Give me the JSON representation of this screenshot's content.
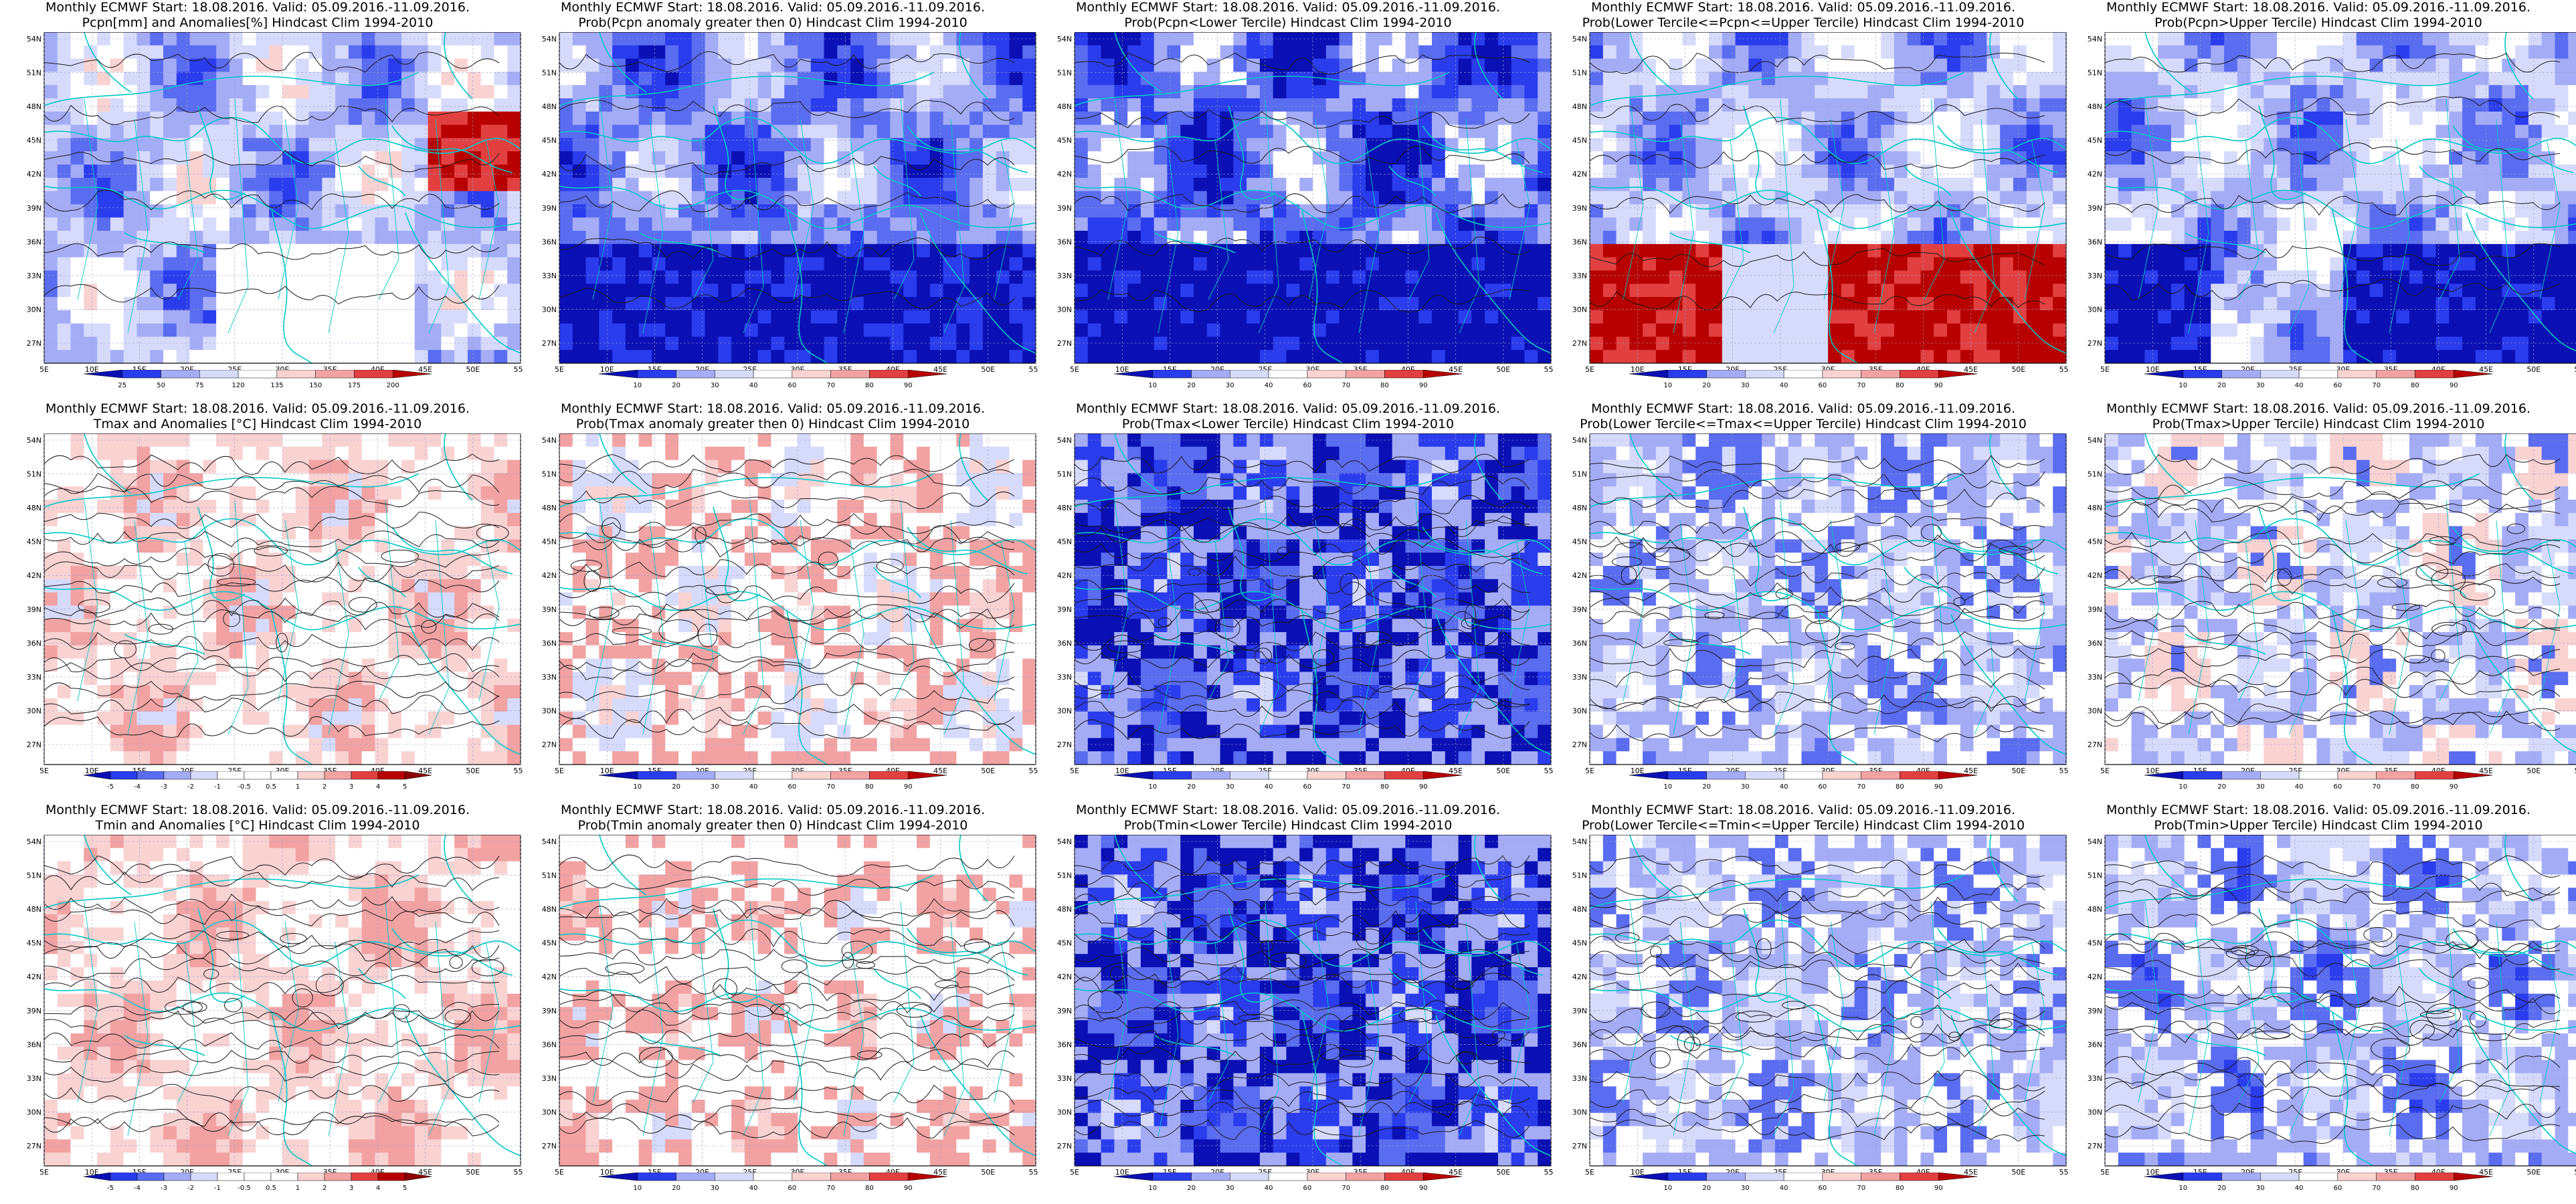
{
  "colors": {
    "deep_blue": "#0a10b4",
    "blue": "#2a3cec",
    "mid_blue": "#5a6cf0",
    "light_blue": "#a4acf6",
    "pale_blue": "#d6dbfb",
    "white": "#ffffff",
    "pale_red": "#f9d2d2",
    "light_red": "#f2a2a2",
    "red": "#e24040",
    "dark_red": "#b80000",
    "coast": "#00c8c8",
    "contour": "#1a1a1a"
  },
  "map_ticks": {
    "lat": [
      "54N",
      "51N",
      "48N",
      "45N",
      "42N",
      "39N",
      "36N",
      "33N",
      "30N",
      "27N"
    ],
    "lon": [
      "5E",
      "10E",
      "15E",
      "20E",
      "25E",
      "30E",
      "35E",
      "40E",
      "45E",
      "50E",
      "55E"
    ]
  },
  "rows": [
    {
      "panels": [
        {
          "title1": "Monthly ECMWF Start: 18.08.2016. Valid: 05.09.2016.-11.09.2016.",
          "title2": "Pcpn[mm] and Anomalies[%] Hindcast Clim 1994-2010",
          "scheme": "precip_anom",
          "colorbar_labels": [
            "25",
            "50",
            "75",
            "120",
            "135",
            "150",
            "175",
            "200"
          ]
        },
        {
          "title1": "Monthly ECMWF Start: 18.08.2016. Valid: 05.09.2016.-11.09.2016.",
          "title2": "Prob(Pcpn anomaly greater then 0) Hindcast Clim 1994-2010",
          "scheme": "prob_blue",
          "colorbar_labels": [
            "10",
            "20",
            "30",
            "40",
            "60",
            "70",
            "80",
            "90"
          ]
        },
        {
          "title1": "Monthly ECMWF Start: 18.08.2016. Valid: 05.09.2016.-11.09.2016.",
          "title2": "Prob(Pcpn<Lower Tercile) Hindcast Clim 1994-2010",
          "scheme": "prob_deep",
          "colorbar_labels": [
            "10",
            "20",
            "30",
            "40",
            "60",
            "70",
            "80",
            "90"
          ]
        },
        {
          "title1": "Monthly ECMWF Start: 18.08.2016. Valid: 05.09.2016.-11.09.2016.",
          "title2": "Prob(Lower Tercile<=Pcpn<=Upper Tercile) Hindcast Clim 1994-2010",
          "scheme": "prob_red_south",
          "colorbar_labels": [
            "10",
            "20",
            "30",
            "40",
            "60",
            "70",
            "80",
            "90"
          ]
        },
        {
          "title1": "Monthly ECMWF Start: 18.08.2016. Valid: 05.09.2016.-11.09.2016.",
          "title2": "Prob(Pcpn>Upper Tercile) Hindcast Clim 1994-2010",
          "scheme": "prob_blue_south",
          "colorbar_labels": [
            "10",
            "20",
            "30",
            "40",
            "60",
            "70",
            "80",
            "90"
          ]
        }
      ]
    },
    {
      "panels": [
        {
          "title1": "Monthly ECMWF Start: 18.08.2016. Valid: 05.09.2016.-11.09.2016.",
          "title2": "Tmax and Anomalies [°C] Hindcast Clim 1994-2010",
          "scheme": "temp_anom",
          "colorbar_labels": [
            "-5",
            "-4",
            "-3",
            "-2",
            "-1",
            "-0.5",
            "0.5",
            "1",
            "2",
            "3",
            "4",
            "5"
          ]
        },
        {
          "title1": "Monthly ECMWF Start: 18.08.2016. Valid: 05.09.2016.-11.09.2016.",
          "title2": "Prob(Tmax anomaly greater then 0) Hindcast Clim 1994-2010",
          "scheme": "prob_redwarm",
          "colorbar_labels": [
            "10",
            "20",
            "30",
            "40",
            "60",
            "70",
            "80",
            "90"
          ]
        },
        {
          "title1": "Monthly ECMWF Start: 18.08.2016. Valid: 05.09.2016.-11.09.2016.",
          "title2": "Prob(Tmax<Lower Tercile) Hindcast Clim 1994-2010",
          "scheme": "prob_deep_contour",
          "colorbar_labels": [
            "10",
            "20",
            "30",
            "40",
            "60",
            "70",
            "80",
            "90"
          ]
        },
        {
          "title1": "Monthly ECMWF Start: 18.08.2016. Valid: 05.09.2016.-11.09.2016.",
          "title2": "Prob(Lower Tercile<=Tmax<=Upper Tercile) Hindcast Clim 1994-2010",
          "scheme": "prob_light_contour",
          "colorbar_labels": [
            "10",
            "20",
            "30",
            "40",
            "60",
            "70",
            "80",
            "90"
          ]
        },
        {
          "title1": "Monthly ECMWF Start: 18.08.2016. Valid: 05.09.2016.-11.09.2016.",
          "title2": "Prob(Tmax>Upper Tercile) Hindcast Clim 1994-2010",
          "scheme": "prob_mix",
          "colorbar_labels": [
            "10",
            "20",
            "30",
            "40",
            "60",
            "70",
            "80",
            "90"
          ]
        }
      ]
    },
    {
      "panels": [
        {
          "title1": "Monthly ECMWF Start: 18.08.2016. Valid: 05.09.2016.-11.09.2016.",
          "title2": "Tmin and Anomalies [°C] Hindcast Clim 1994-2010",
          "scheme": "temp_anom_min",
          "colorbar_labels": [
            "-5",
            "-4",
            "-3",
            "-2",
            "-1",
            "-0.5",
            "0.5",
            "1",
            "2",
            "3",
            "4",
            "5"
          ]
        },
        {
          "title1": "Monthly ECMWF Start: 18.08.2016. Valid: 05.09.2016.-11.09.2016.",
          "title2": "Prob(Tmin anomaly greater then 0) Hindcast Clim 1994-2010",
          "scheme": "prob_redwarm_min",
          "colorbar_labels": [
            "10",
            "20",
            "30",
            "40",
            "60",
            "70",
            "80",
            "90"
          ]
        },
        {
          "title1": "Monthly ECMWF Start: 18.08.2016. Valid: 05.09.2016.-11.09.2016.",
          "title2": "Prob(Tmin<Lower Tercile) Hindcast Clim 1994-2010",
          "scheme": "prob_deep_contour",
          "colorbar_labels": [
            "10",
            "20",
            "30",
            "40",
            "60",
            "70",
            "80",
            "90"
          ]
        },
        {
          "title1": "Monthly ECMWF Start: 18.08.2016. Valid: 05.09.2016.-11.09.2016.",
          "title2": "Prob(Lower Tercile<=Tmin<=Upper Tercile) Hindcast Clim 1994-2010",
          "scheme": "prob_light_contour",
          "colorbar_labels": [
            "10",
            "20",
            "30",
            "40",
            "60",
            "70",
            "80",
            "90"
          ]
        },
        {
          "title1": "Monthly ECMWF Start: 18.08.2016. Valid: 05.09.2016.-11.09.2016.",
          "title2": "Prob(Tmin>Upper Tercile) Hindcast Clim 1994-2010",
          "scheme": "prob_mix_south",
          "colorbar_labels": [
            "10",
            "20",
            "30",
            "40",
            "60",
            "70",
            "80",
            "90"
          ]
        }
      ]
    }
  ]
}
